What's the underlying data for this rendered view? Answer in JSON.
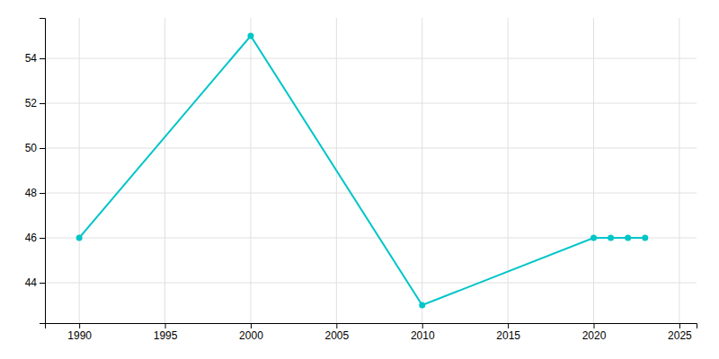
{
  "chart_data": {
    "type": "line",
    "x": [
      1990,
      2000,
      2010,
      2020,
      2021,
      2022,
      2023
    ],
    "values": [
      46,
      55,
      43,
      46,
      46,
      46,
      46
    ],
    "color": "#00C5C8",
    "marker": "circle",
    "xlim": [
      1988,
      2026
    ],
    "ylim": [
      42.2,
      55.8
    ],
    "xticks": [
      1990,
      1995,
      2000,
      2005,
      2010,
      2015,
      2020,
      2025
    ],
    "yticks": [
      44,
      46,
      48,
      50,
      52,
      54
    ],
    "grid": true
  }
}
